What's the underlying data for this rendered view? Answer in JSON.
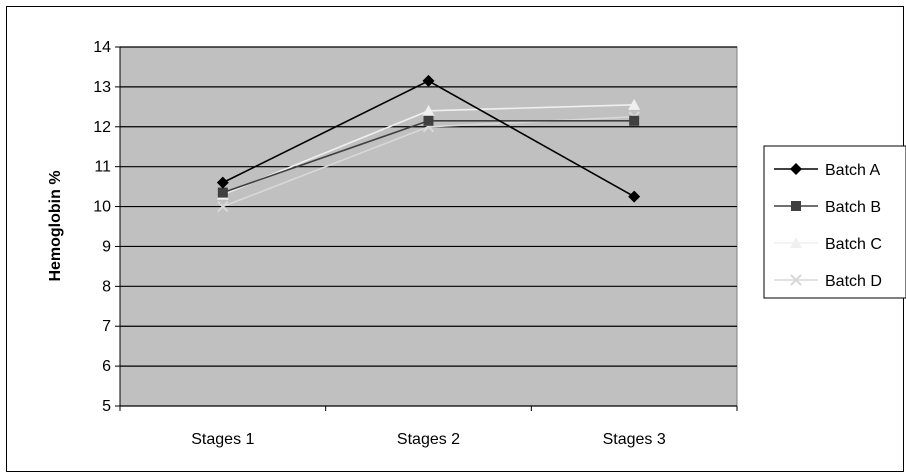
{
  "chart_data": {
    "type": "line",
    "title": "",
    "xlabel": "",
    "ylabel": "Hemoglobin %",
    "categories": [
      "Stages 1",
      "Stages 2",
      "Stages 3"
    ],
    "ylim": [
      5,
      14
    ],
    "yticks": [
      5,
      6,
      7,
      8,
      9,
      10,
      11,
      12,
      13,
      14
    ],
    "grid": true,
    "legend_position": "right",
    "plot_background": "#c0c0c0",
    "series": [
      {
        "name": "Batch A",
        "values": [
          10.6,
          13.15,
          10.25
        ],
        "color": "#000000",
        "marker": "diamond"
      },
      {
        "name": "Batch B",
        "values": [
          10.35,
          12.15,
          12.15
        ],
        "color": "#404040",
        "marker": "square"
      },
      {
        "name": "Batch C",
        "values": [
          10.3,
          12.4,
          12.55
        ],
        "color": "#f0f0f0",
        "marker": "triangle"
      },
      {
        "name": "Batch D",
        "values": [
          10.0,
          12.0,
          12.25
        ],
        "color": "#d8d8d8",
        "marker": "x"
      }
    ]
  }
}
